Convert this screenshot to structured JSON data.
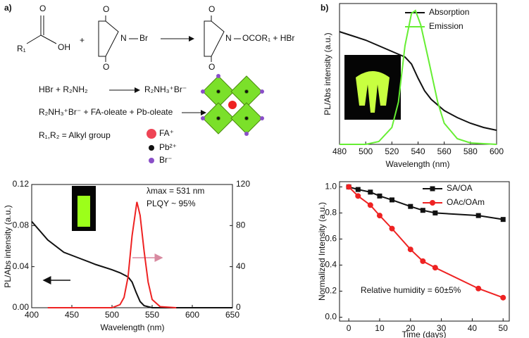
{
  "scheme": {
    "panel_label": "a)",
    "acid_R": "R₁",
    "acid_OH": "OH",
    "acid_O": "O",
    "plus": "+",
    "nbs_N": "N",
    "nbs_Br": "Br",
    "nbs_O_top": "O",
    "nbs_O_bottom": "O",
    "prod_N": "N",
    "prod_rest": "OCOR₁ + HBr",
    "prod_O_top": "O",
    "prod_O_bottom": "O",
    "line1_left": "HBr + R₂NH₂",
    "line1_right": "R₂NH₃⁺Br⁻",
    "line2": "R₂NH₃⁺Br⁻ + FA-oleate + Pb-oleate",
    "line3": "R₁,R₂ = Alkyl group",
    "legend_fa": "FA⁺",
    "legend_pb": "Pb²⁺",
    "legend_br": "Br⁻"
  },
  "panel_b_label": "b)",
  "chart_data": [
    {
      "type": "line",
      "x_label": "Wavelength (nm)",
      "y_label": "PL/Abs intensity (a.u.)",
      "xlim": [
        400,
        650
      ],
      "xticks": [
        400,
        450,
        500,
        550,
        600,
        650
      ],
      "ylim": [
        0,
        0.12
      ],
      "yticks": [
        {
          "value": 0,
          "label": "0.00"
        },
        0.04,
        0.08,
        0.12
      ],
      "y2lim": [
        0,
        120
      ],
      "y2ticks": [
        0,
        40,
        80,
        120
      ],
      "annotations": [
        "λmax = 531 nm",
        "PLQY ~ 95%"
      ],
      "series": [
        {
          "color": "#111111",
          "x": [
            400,
            420,
            440,
            460,
            480,
            500,
            510,
            520,
            525,
            530,
            535,
            540,
            550,
            650
          ],
          "values": [
            0.084,
            0.066,
            0.054,
            0.048,
            0.042,
            0.037,
            0.034,
            0.03,
            0.025,
            0.015,
            0.006,
            0.002,
            0,
            0
          ]
        },
        {
          "color": "#ee2222",
          "axis": "y2",
          "x": [
            420,
            500,
            510,
            515,
            520,
            525,
            531,
            535,
            540,
            545,
            550,
            560,
            580
          ],
          "values": [
            0,
            0,
            3,
            10,
            30,
            70,
            103,
            90,
            55,
            25,
            8,
            1,
            0
          ]
        }
      ]
    },
    {
      "type": "line",
      "x_label": "Wavelength (nm)",
      "y_label": "PL/Abs  intensity (a.u.)",
      "xlim": [
        480,
        600
      ],
      "xticks": [
        480,
        500,
        520,
        540,
        560,
        580,
        600
      ],
      "ylim": [
        0,
        1
      ],
      "legend": "upper right",
      "series": [
        {
          "name": "Absorption",
          "color": "#111111",
          "x": [
            480,
            490,
            500,
            510,
            520,
            525,
            530,
            535,
            540,
            545,
            550,
            560,
            570,
            580,
            590,
            600
          ],
          "values": [
            0.8,
            0.77,
            0.74,
            0.7,
            0.66,
            0.64,
            0.62,
            0.57,
            0.47,
            0.38,
            0.32,
            0.24,
            0.19,
            0.15,
            0.12,
            0.1
          ]
        },
        {
          "name": "Emission",
          "color": "#66ee33",
          "x": [
            480,
            500,
            510,
            520,
            525,
            530,
            535,
            538,
            542,
            548,
            555,
            560,
            570,
            580,
            600
          ],
          "values": [
            0,
            0,
            0.02,
            0.12,
            0.3,
            0.7,
            0.93,
            0.95,
            0.85,
            0.6,
            0.3,
            0.15,
            0.04,
            0.01,
            0
          ]
        }
      ]
    },
    {
      "type": "line",
      "x_label": "Time (days)",
      "y_label": "Normalized Intensity (a.u.)",
      "xlim": [
        -3,
        52
      ],
      "xticks": [
        0,
        10,
        20,
        30,
        40,
        50
      ],
      "ylim": [
        -0.03,
        1.04
      ],
      "yticks": [
        {
          "value": 0,
          "label": "0.0"
        },
        0.2,
        0.4,
        0.6,
        0.8,
        {
          "value": 1,
          "label": "1.0"
        }
      ],
      "legend": "upper right",
      "annotations": [
        "Relative humidity = 60±5%"
      ],
      "series": [
        {
          "name": "SA/OA",
          "color": "#111111",
          "marker": "square",
          "x": [
            0,
            3,
            7,
            10,
            14,
            20,
            24,
            28,
            42,
            50
          ],
          "values": [
            1,
            0.98,
            0.96,
            0.93,
            0.9,
            0.85,
            0.82,
            0.8,
            0.78,
            0.75
          ]
        },
        {
          "name": "OAc/OAm",
          "color": "#ee2222",
          "marker": "circle",
          "x": [
            0,
            3,
            7,
            10,
            14,
            20,
            24,
            28,
            42,
            50
          ],
          "values": [
            1,
            0.93,
            0.86,
            0.78,
            0.68,
            0.52,
            0.43,
            0.38,
            0.22,
            0.15
          ]
        }
      ]
    }
  ]
}
